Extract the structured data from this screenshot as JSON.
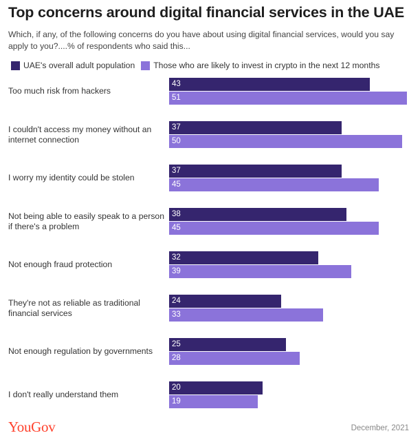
{
  "chart_data": {
    "type": "bar",
    "orientation": "horizontal",
    "title": "Top concerns around digital financial services in the UAE",
    "subtitle": "Which, if any, of the following concerns do you have about using digital financial services, would you say apply to you?....% of respondents who said this...",
    "categories": [
      [
        "Too much risk from hackers"
      ],
      [
        "I couldn't access my money without an",
        "internet connection"
      ],
      [
        "I worry my identity could be stolen"
      ],
      [
        "Not being able to easily speak to a person",
        "if there's a problem"
      ],
      [
        "Not enough fraud protection"
      ],
      [
        "They're not as reliable as traditional",
        "financial services"
      ],
      [
        "Not enough regulation by governments"
      ],
      [
        "I don't really understand them"
      ]
    ],
    "series": [
      {
        "name": "UAE's overall adult population",
        "color": "#35256e",
        "values": [
          43,
          37,
          37,
          38,
          32,
          24,
          25,
          20
        ]
      },
      {
        "name": "Those who are likely to invest in crypto in the next 12 months",
        "color": "#8b73da",
        "values": [
          51,
          50,
          45,
          45,
          39,
          33,
          28,
          19
        ]
      }
    ],
    "xlim": [
      0,
      51
    ],
    "legend_position": "top-left",
    "grid": false
  },
  "footer": {
    "logo": "YouGov",
    "date": "December, 2021"
  }
}
